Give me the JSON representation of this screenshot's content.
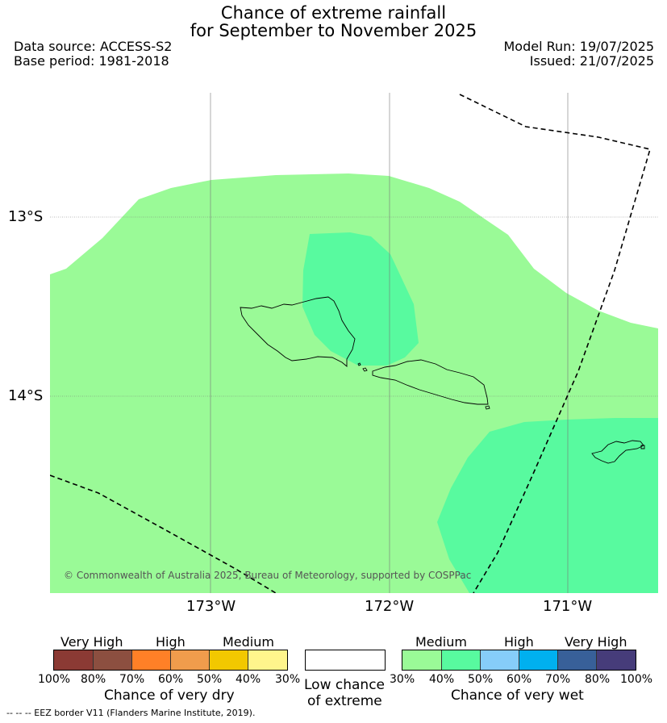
{
  "title": {
    "line1": "Chance of extreme rainfall",
    "line2": "for September to November 2025"
  },
  "info": {
    "data_source": "Data source: ACCESS-S2",
    "base_period": "Base period: 1981-2018",
    "model_run": "Model Run: 19/07/2025",
    "issued": "Issued: 21/07/2025"
  },
  "map": {
    "lat_labels": [
      "13°S",
      "14°S"
    ],
    "lon_labels": [
      "173°W",
      "172°W",
      "171°W"
    ],
    "copyright": "© Commonwealth of Australia 2025, Bureau of Meteorology, supported by COSPPac",
    "colors": {
      "wet_medium_30_40": "#9afa97",
      "wet_medium_40_50": "#58fa9f",
      "eez_line": "#000000"
    }
  },
  "legend_dry": {
    "categories": [
      "Very High",
      "High",
      "Medium"
    ],
    "ticks": [
      "100%",
      "80%",
      "70%",
      "60%",
      "50%",
      "40%",
      "30%"
    ],
    "colors": [
      "#8b3a34",
      "#8c4f40",
      "#ff8027",
      "#f09c4c",
      "#f2c800",
      "#fff58c"
    ],
    "caption": "Chance of very dry"
  },
  "legend_low": {
    "caption_line1": "Low chance",
    "caption_line2": "of extreme",
    "color": "#ffffff"
  },
  "legend_wet": {
    "categories": [
      "Medium",
      "High",
      "Very High"
    ],
    "ticks": [
      "30%",
      "40%",
      "50%",
      "60%",
      "70%",
      "80%",
      "100%"
    ],
    "colors": [
      "#9afa97",
      "#58fa9f",
      "#86cdf9",
      "#00b0ef",
      "#386099",
      "#463c7a"
    ],
    "caption": "Chance of very wet"
  },
  "footnote": "--  --  -- EEZ border V11 (Flanders Marine Institute, 2019)."
}
